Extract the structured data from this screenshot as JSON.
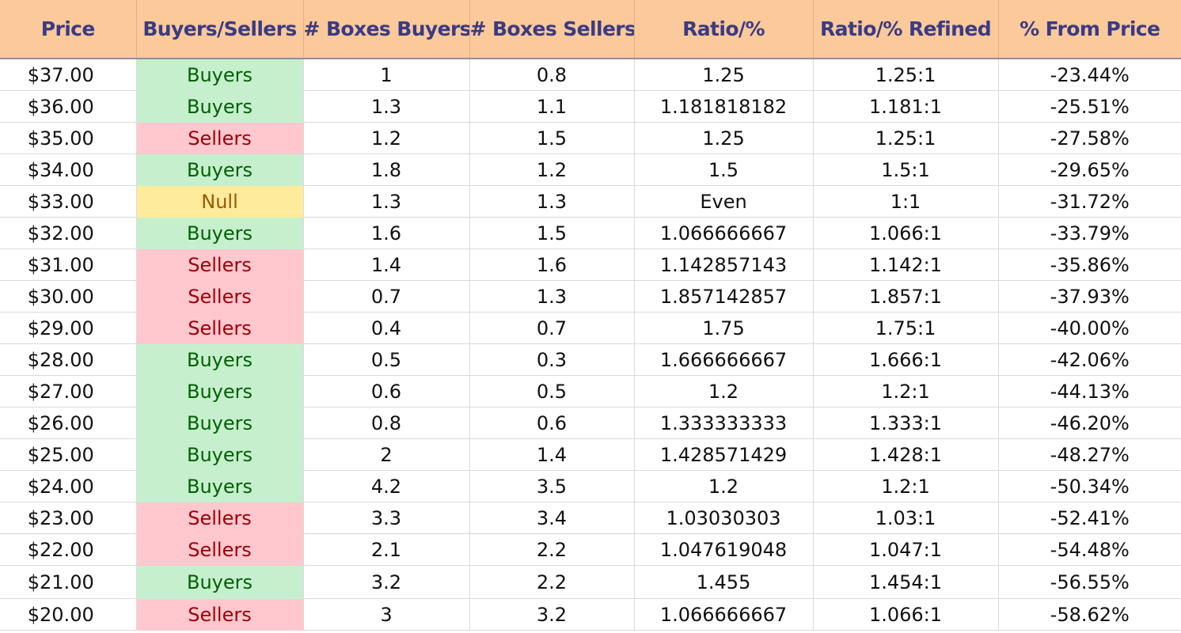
{
  "headers": [
    "Price",
    "Buyers/Sellers",
    "# Boxes Buyers",
    "# Boxes Sellers",
    "Ratio/%",
    "Ratio/% Refined",
    "% From Price"
  ],
  "colors": {
    "header_bg": "#fcc99a",
    "header_text": "#3a3b84",
    "buyers_bg": "#c6efce",
    "buyers_text": "#006100",
    "sellers_bg": "#ffc7ce",
    "sellers_text": "#9c0006",
    "null_bg": "#ffeb9c",
    "null_text": "#9c5700"
  },
  "rows": [
    {
      "price": "$37.00",
      "side": "Buyers",
      "buyers": "1",
      "sellers": "0.8",
      "ratio": "1.25",
      "refined": "1.25:1",
      "from_price": "-23.44%"
    },
    {
      "price": "$36.00",
      "side": "Buyers",
      "buyers": "1.3",
      "sellers": "1.1",
      "ratio": "1.181818182",
      "refined": "1.181:1",
      "from_price": "-25.51%"
    },
    {
      "price": "$35.00",
      "side": "Sellers",
      "buyers": "1.2",
      "sellers": "1.5",
      "ratio": "1.25",
      "refined": "1.25:1",
      "from_price": "-27.58%"
    },
    {
      "price": "$34.00",
      "side": "Buyers",
      "buyers": "1.8",
      "sellers": "1.2",
      "ratio": "1.5",
      "refined": "1.5:1",
      "from_price": "-29.65%"
    },
    {
      "price": "$33.00",
      "side": "Null",
      "buyers": "1.3",
      "sellers": "1.3",
      "ratio": "Even",
      "refined": "1:1",
      "from_price": "-31.72%"
    },
    {
      "price": "$32.00",
      "side": "Buyers",
      "buyers": "1.6",
      "sellers": "1.5",
      "ratio": "1.066666667",
      "refined": "1.066:1",
      "from_price": "-33.79%"
    },
    {
      "price": "$31.00",
      "side": "Sellers",
      "buyers": "1.4",
      "sellers": "1.6",
      "ratio": "1.142857143",
      "refined": "1.142:1",
      "from_price": "-35.86%"
    },
    {
      "price": "$30.00",
      "side": "Sellers",
      "buyers": "0.7",
      "sellers": "1.3",
      "ratio": "1.857142857",
      "refined": "1.857:1",
      "from_price": "-37.93%"
    },
    {
      "price": "$29.00",
      "side": "Sellers",
      "buyers": "0.4",
      "sellers": "0.7",
      "ratio": "1.75",
      "refined": "1.75:1",
      "from_price": "-40.00%"
    },
    {
      "price": "$28.00",
      "side": "Buyers",
      "buyers": "0.5",
      "sellers": "0.3",
      "ratio": "1.666666667",
      "refined": "1.666:1",
      "from_price": "-42.06%"
    },
    {
      "price": "$27.00",
      "side": "Buyers",
      "buyers": "0.6",
      "sellers": "0.5",
      "ratio": "1.2",
      "refined": "1.2:1",
      "from_price": "-44.13%"
    },
    {
      "price": "$26.00",
      "side": "Buyers",
      "buyers": "0.8",
      "sellers": "0.6",
      "ratio": "1.333333333",
      "refined": "1.333:1",
      "from_price": "-46.20%"
    },
    {
      "price": "$25.00",
      "side": "Buyers",
      "buyers": "2",
      "sellers": "1.4",
      "ratio": "1.428571429",
      "refined": "1.428:1",
      "from_price": "-48.27%"
    },
    {
      "price": "$24.00",
      "side": "Buyers",
      "buyers": "4.2",
      "sellers": "3.5",
      "ratio": "1.2",
      "refined": "1.2:1",
      "from_price": "-50.34%"
    },
    {
      "price": "$23.00",
      "side": "Sellers",
      "buyers": "3.3",
      "sellers": "3.4",
      "ratio": "1.03030303",
      "refined": "1.03:1",
      "from_price": "-52.41%"
    },
    {
      "price": "$22.00",
      "side": "Sellers",
      "buyers": "2.1",
      "sellers": "2.2",
      "ratio": "1.047619048",
      "refined": "1.047:1",
      "from_price": "-54.48%"
    },
    {
      "price": "$21.00",
      "side": "Buyers",
      "buyers": "3.2",
      "sellers": "2.2",
      "ratio": "1.455",
      "refined": "1.454:1",
      "from_price": "-56.55%"
    },
    {
      "price": "$20.00",
      "side": "Sellers",
      "buyers": "3",
      "sellers": "3.2",
      "ratio": "1.066666667",
      "refined": "1.066:1",
      "from_price": "-58.62%"
    }
  ]
}
